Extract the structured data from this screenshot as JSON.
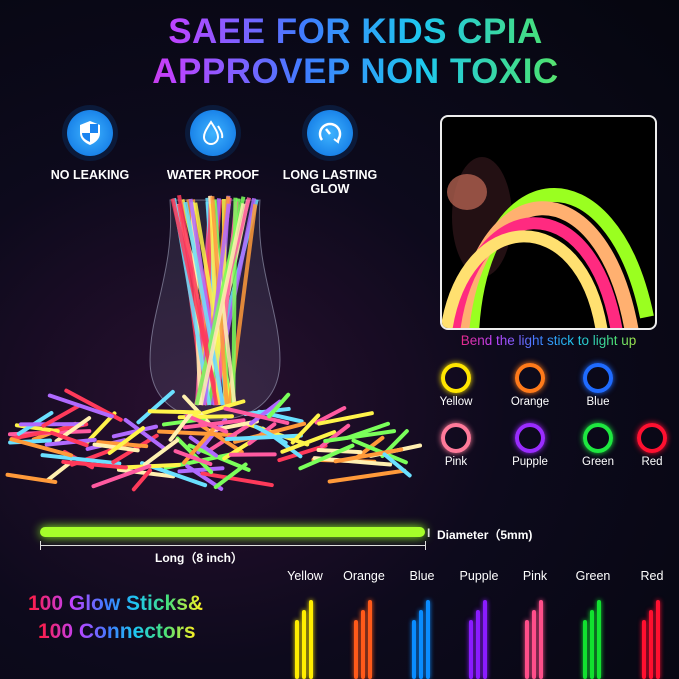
{
  "title": {
    "line1": "SAEE FOR KIDS CPIA",
    "line2": "APPROVEP NON TOXIC"
  },
  "features": [
    {
      "icon": "shield-icon",
      "label": "NO LEAKING"
    },
    {
      "icon": "water-drop-icon",
      "label": "WATER PROOF"
    },
    {
      "icon": "gauge-icon",
      "label": "LONG LASTING GLOW"
    }
  ],
  "bend_caption": "Bend the light stick to light up",
  "rings": [
    {
      "label": "Yellow",
      "color": "#ffe600"
    },
    {
      "label": "Orange",
      "color": "#ff7a1a"
    },
    {
      "label": "Blue",
      "color": "#1f6bff"
    },
    {
      "label": "Pink",
      "color": "#ff7a9a"
    },
    {
      "label": "Pupple",
      "color": "#9a2cff"
    },
    {
      "label": "Green",
      "color": "#1ee840"
    },
    {
      "label": "Red",
      "color": "#ff1030"
    }
  ],
  "dimensions": {
    "diameter": "Diameter（5mm)",
    "length": "Long（8 inch）"
  },
  "promo": {
    "line1": "100 Glow Sticks&",
    "line2": "100 Connectors"
  },
  "stick_colors": [
    {
      "label": "Yellow",
      "color": "#ffee00"
    },
    {
      "label": "Orange",
      "color": "#ff5a1a"
    },
    {
      "label": "Blue",
      "color": "#0a8cff"
    },
    {
      "label": "Pupple",
      "color": "#8a1cff"
    },
    {
      "label": "Pink",
      "color": "#ff4f8a"
    },
    {
      "label": "Green",
      "color": "#12e030"
    },
    {
      "label": "Red",
      "color": "#ff1030"
    }
  ]
}
